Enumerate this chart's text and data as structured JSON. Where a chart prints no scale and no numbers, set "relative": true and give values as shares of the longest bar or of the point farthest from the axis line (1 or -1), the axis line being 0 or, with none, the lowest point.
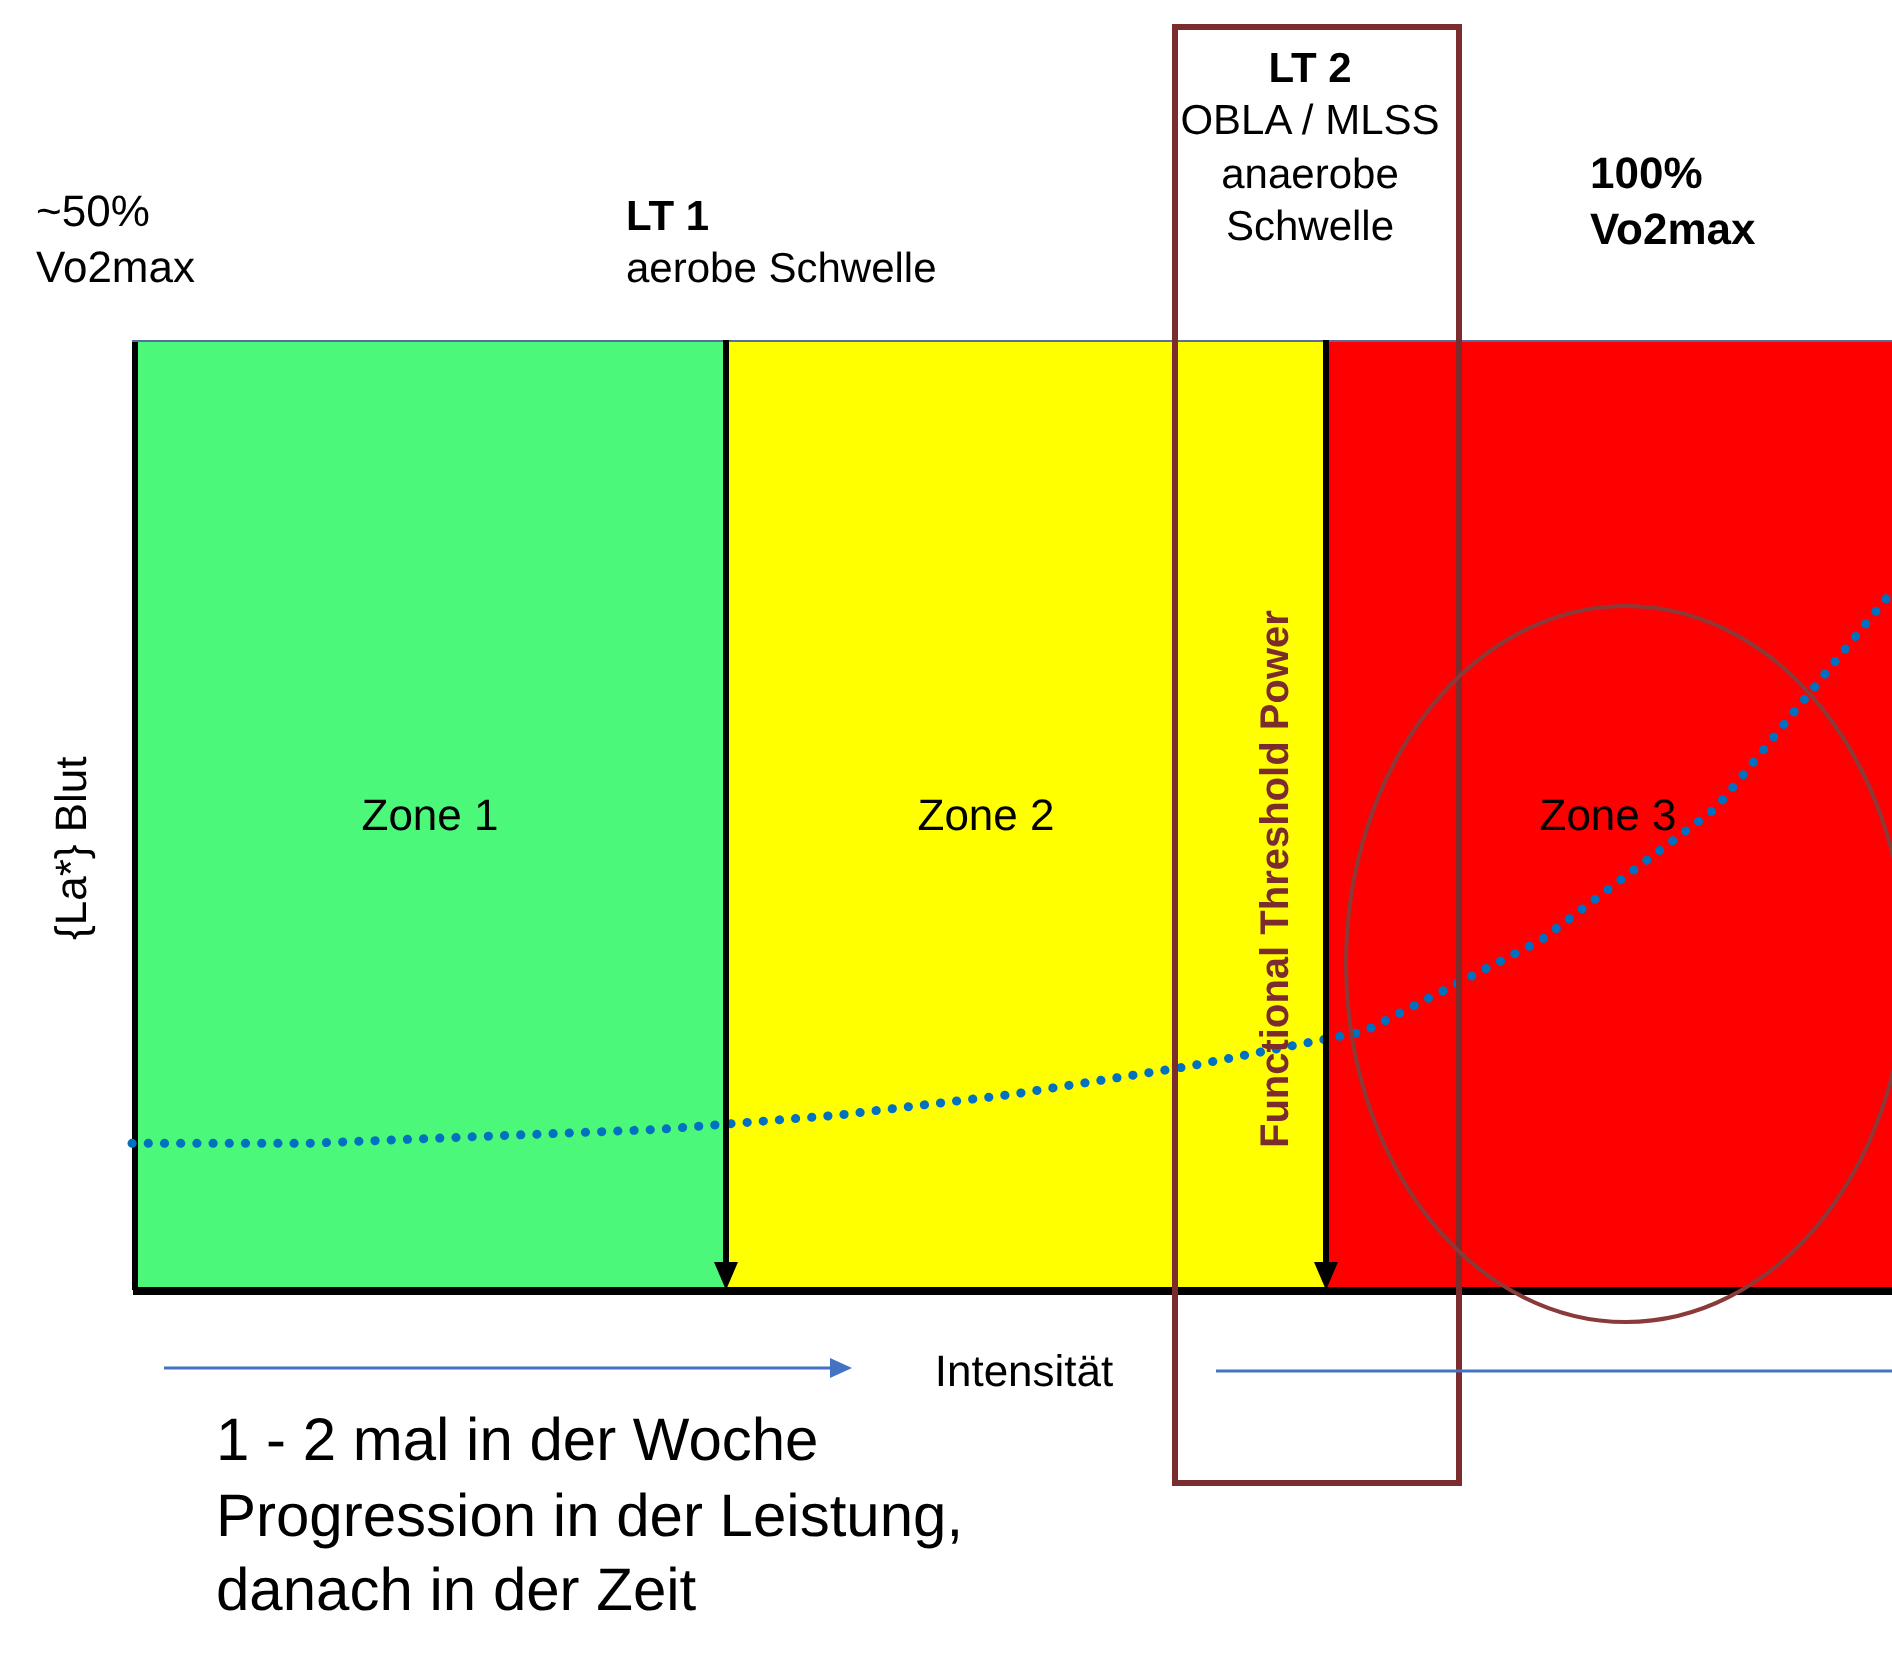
{
  "chart_data": {
    "type": "line",
    "relative": true,
    "xlabel": "Intensität",
    "ylabel": "{La*} Blut",
    "categories": [
      null,
      null,
      null,
      null,
      null,
      null,
      null,
      null,
      null,
      null,
      null
    ],
    "series": [
      {
        "color": "#0070c0",
        "values": [
          0.21,
          0.21,
          0.22,
          0.23,
          0.25,
          0.28,
          0.32,
          0.37,
          0.5,
          0.69,
          1
        ]
      }
    ],
    "line_style": "dotted",
    "marker": "none",
    "annotations": [
      "~50%\nVo2max",
      "LT 1\naerobe Schwelle",
      "LT 2\nOBLA / MLSS\nanaerobe\nSchwelle",
      "100%\nVo2max",
      "Zone 1",
      "Zone 2",
      "Zone 3",
      "Functional Threshold Power",
      "1 - 2 mal in der Woche\nProgression in der Leistung,\ndanach in der Zeit"
    ]
  }
}
